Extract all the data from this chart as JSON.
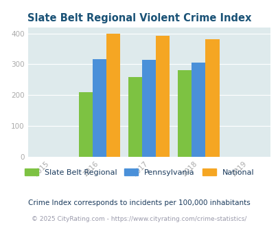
{
  "title": "Slate Belt Regional Violent Crime Index",
  "years": [
    2015,
    2016,
    2017,
    2018,
    2019
  ],
  "bar_years": [
    2016,
    2017,
    2018
  ],
  "slate_belt": [
    210,
    258,
    280
  ],
  "pennsylvania": [
    317,
    314,
    305
  ],
  "national": [
    400,
    393,
    382
  ],
  "colors": {
    "slate_belt": "#7dc242",
    "pennsylvania": "#4a90d9",
    "national": "#f5a623"
  },
  "ylim": [
    0,
    420
  ],
  "yticks": [
    0,
    100,
    200,
    300,
    400
  ],
  "background_plot": "#deeaec",
  "background_fig": "#ffffff",
  "title_color": "#1a5276",
  "axis_color": "#aaaaaa",
  "legend_labels": [
    "Slate Belt Regional",
    "Pennsylvania",
    "National"
  ],
  "subtitle": "Crime Index corresponds to incidents per 100,000 inhabitants",
  "footer": "© 2025 CityRating.com - https://www.cityrating.com/crime-statistics/",
  "subtitle_color": "#1a3a5c",
  "footer_color": "#9999aa",
  "bar_width": 0.28
}
